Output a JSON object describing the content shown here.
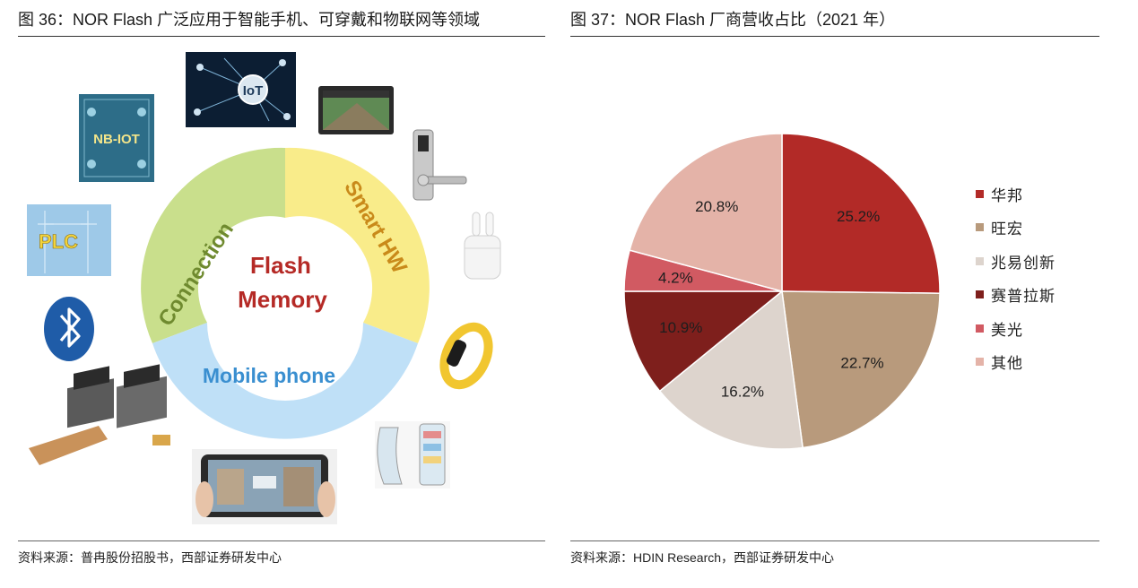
{
  "left_figure": {
    "title": "图 36：NOR Flash 广泛应用于智能手机、可穿戴和物联网等领域",
    "source": "资料来源：普冉股份招股书，西部证券研发中心",
    "center_text_line1": "Flash",
    "center_text_line2": "Memory",
    "ring_labels": {
      "connection": "Connection",
      "smart_hw": "Smart HW",
      "mobile_phone": "Mobile phone"
    },
    "icon_texts": {
      "iot": "IoT",
      "nbiot": "NB-IOT",
      "plc": "PLC"
    },
    "colors": {
      "connection": "#c9df8c",
      "smart_hw": "#f9ec8a",
      "mobile_phone": "#bfe0f7",
      "center_text": "#b52a26",
      "connection_text": "#6f8a2f",
      "smart_text": "#c98a1a",
      "mobile_text": "#3a8fd0"
    }
  },
  "right_figure": {
    "title": "图 37：NOR Flash 厂商营收占比（2021 年）",
    "source": "资料来源：HDIN Research，西部证券研发中心"
  },
  "chart_data": {
    "type": "pie",
    "title": "图 37：NOR Flash 厂商营收占比（2021 年）",
    "slices": [
      {
        "name": "华邦",
        "value": 25.2,
        "label": "25.2%",
        "color": "#b22a27"
      },
      {
        "name": "旺宏",
        "value": 22.7,
        "label": "22.7%",
        "color": "#b89a7c"
      },
      {
        "name": "兆易创新",
        "value": 16.2,
        "label": "16.2%",
        "color": "#ddd4cd"
      },
      {
        "name": "赛普拉斯",
        "value": 10.9,
        "label": "10.9%",
        "color": "#7e1f1c"
      },
      {
        "name": "美光",
        "value": 4.2,
        "label": "4.2%",
        "color": "#d15a62"
      },
      {
        "name": "其他",
        "value": 20.8,
        "label": "20.8%",
        "color": "#e4b3a8"
      }
    ],
    "legend_position": "right"
  }
}
